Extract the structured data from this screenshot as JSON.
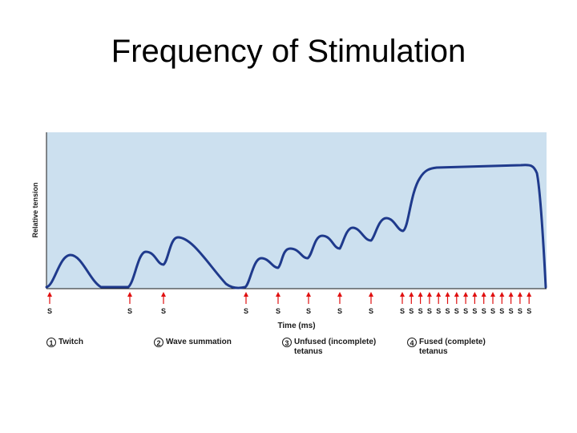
{
  "title": "Frequency of Stimulation",
  "diagram": {
    "y_axis_label": "Relative tension",
    "x_axis_label": "Time (ms)",
    "stimulus_label": "S",
    "colors": {
      "plot_background": "#cce0ef",
      "trace": "#1f3a8c",
      "stimulus_arrow": "#e01010"
    },
    "phases": [
      {
        "number": "1",
        "label": "Twitch"
      },
      {
        "number": "2",
        "label": "Wave summation"
      },
      {
        "number": "3",
        "label": "Unfused (incomplete) tetanus"
      },
      {
        "number": "4",
        "label": "Fused (complete) tetanus"
      }
    ]
  }
}
